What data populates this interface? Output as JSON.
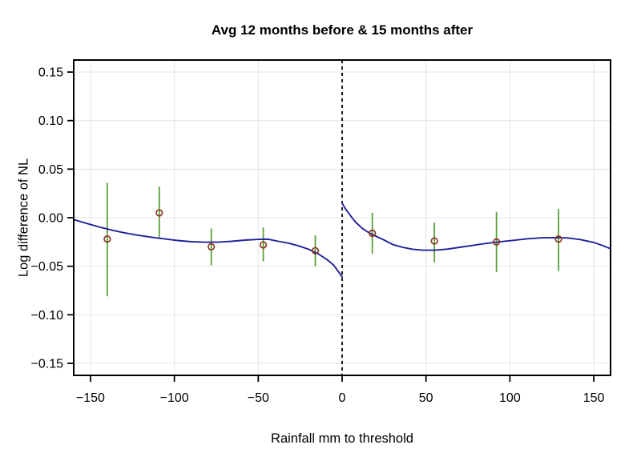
{
  "chart_data": {
    "type": "scatter",
    "title": "Avg 12 months before & 15 months after",
    "xlabel": "Rainfall mm to threshold",
    "ylabel": "Log difference of NL",
    "xlim": [
      -160,
      160
    ],
    "ylim": [
      -0.1624,
      0.1624
    ],
    "grid": true,
    "legend": "none",
    "cutoff_x": 0,
    "x_ticks": [
      {
        "v": -150,
        "label": "−150"
      },
      {
        "v": -100,
        "label": "−100"
      },
      {
        "v": -50,
        "label": "−50"
      },
      {
        "v": 0,
        "label": "0"
      },
      {
        "v": 50,
        "label": "50"
      },
      {
        "v": 100,
        "label": "100"
      },
      {
        "v": 150,
        "label": "150"
      }
    ],
    "y_ticks": [
      {
        "v": 0.15,
        "label": "0.15"
      },
      {
        "v": 0.1,
        "label": "0.10"
      },
      {
        "v": 0.05,
        "label": "0.05"
      },
      {
        "v": 0.0,
        "label": "0.00"
      },
      {
        "v": -0.05,
        "label": "−0.05"
      },
      {
        "v": -0.1,
        "label": "−0.10"
      },
      {
        "v": -0.15,
        "label": "−0.15"
      }
    ],
    "points": [
      {
        "x": -140,
        "y": -0.022,
        "lo": -0.081,
        "hi": 0.036
      },
      {
        "x": -109,
        "y": 0.005,
        "lo": -0.021,
        "hi": 0.032
      },
      {
        "x": -78,
        "y": -0.03,
        "lo": -0.049,
        "hi": -0.011
      },
      {
        "x": -47,
        "y": -0.028,
        "lo": -0.045,
        "hi": -0.01
      },
      {
        "x": -16,
        "y": -0.034,
        "lo": -0.05,
        "hi": -0.018
      },
      {
        "x": 18,
        "y": -0.016,
        "lo": -0.037,
        "hi": 0.005
      },
      {
        "x": 55,
        "y": -0.024,
        "lo": -0.046,
        "hi": -0.005
      },
      {
        "x": 92,
        "y": -0.025,
        "lo": -0.056,
        "hi": 0.006
      },
      {
        "x": 129,
        "y": -0.022,
        "lo": -0.055,
        "hi": 0.009
      }
    ],
    "series": [
      {
        "name": "local-polynomial-fit-left",
        "x": [
          -160,
          -152,
          -145,
          -138,
          -130,
          -122,
          -114,
          -106,
          -98,
          -90,
          -82,
          -74,
          -66,
          -58,
          -50,
          -44,
          -38,
          -32,
          -26,
          -20,
          -14,
          -9,
          -5,
          -2,
          0
        ],
        "y": [
          -0.002,
          -0.006,
          -0.0095,
          -0.0125,
          -0.0155,
          -0.018,
          -0.02,
          -0.0218,
          -0.0235,
          -0.0247,
          -0.0252,
          -0.0252,
          -0.0243,
          -0.0231,
          -0.0223,
          -0.0222,
          -0.0243,
          -0.0262,
          -0.029,
          -0.0325,
          -0.0375,
          -0.0432,
          -0.049,
          -0.056,
          -0.061
        ]
      },
      {
        "name": "local-polynomial-fit-right",
        "x": [
          0,
          2,
          5,
          8,
          12,
          16,
          20,
          25,
          30,
          36,
          42,
          48,
          55,
          62,
          70,
          78,
          86,
          94,
          102,
          110,
          118,
          126,
          134,
          142,
          150,
          155,
          160
        ],
        "y": [
          0.015,
          0.009,
          0.002,
          -0.0045,
          -0.011,
          -0.0155,
          -0.019,
          -0.023,
          -0.0275,
          -0.0305,
          -0.0325,
          -0.0335,
          -0.0335,
          -0.0325,
          -0.0305,
          -0.0285,
          -0.0265,
          -0.0248,
          -0.0233,
          -0.0218,
          -0.0208,
          -0.0205,
          -0.0208,
          -0.0225,
          -0.0255,
          -0.0285,
          -0.032
        ]
      }
    ],
    "colors": {
      "curve": "#22229a",
      "error_bar": "#5ba03c",
      "point": "#8b3a26",
      "grid": "#e4e4e4",
      "cutoff": "#000000",
      "frame": "#000000",
      "text": "#000000",
      "background": "#ffffff"
    }
  }
}
